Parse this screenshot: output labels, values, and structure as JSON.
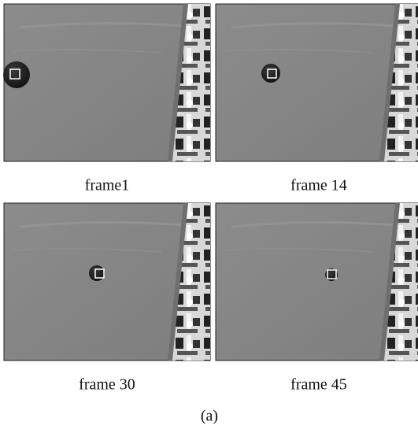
{
  "panels": [
    {
      "caption": "frame1"
    },
    {
      "caption": "frame 14"
    },
    {
      "caption": "frame 30"
    },
    {
      "caption": "frame 45"
    }
  ],
  "figure_label": "(a)"
}
